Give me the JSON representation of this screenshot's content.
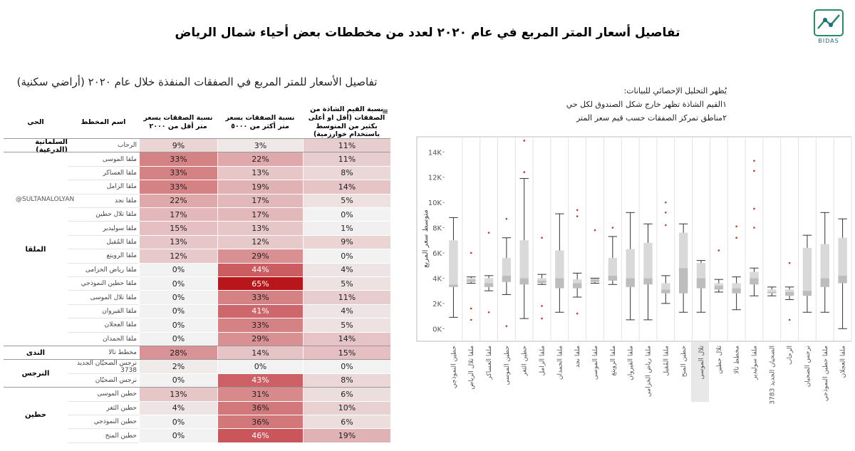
{
  "header": {
    "title": "تفاصيل أسعار المتر المربع  في عام ٢٠٢٠ لعدد من مخططات بعض أحياء شمال الرياض",
    "logo": "BIDAS"
  },
  "table": {
    "title": "تفاصيل الأسعار للمتر المربع في الصفقات المنفذة خلال عام ٢٠٢٠ (أراضي سكنية)",
    "watermark": "@SULTANALOLYAN",
    "columns": [
      "الحي",
      "اسم المخطط",
      "نسبة الصفقات بسعر متر أقل من ٢٠٠٠",
      "نسبة الصفقات بسعر متر أكثر من ٥٠٠٠",
      "نسبة القيم الشاذة من الصفقات (أقل او أعلى بكثير من المتوسط باستخدام خوارزمية)"
    ],
    "groups": [
      {
        "district": "السلمانية (الدرعية)",
        "rows": [
          {
            "plan": "الرحاب",
            "cells": [
              {
                "value": 11,
                "label": "11%"
              },
              {
                "value": 3,
                "label": "3%"
              },
              {
                "value": 9,
                "label": "9%"
              }
            ]
          }
        ]
      },
      {
        "district": "الملقا",
        "rows": [
          {
            "plan": "ملقا الموسى",
            "cells": [
              {
                "value": 11,
                "label": "11%"
              },
              {
                "value": 22,
                "label": "22%"
              },
              {
                "value": 33,
                "label": "33%"
              }
            ]
          },
          {
            "plan": "ملقا العساكر",
            "cells": [
              {
                "value": 8,
                "label": "8%"
              },
              {
                "value": 13,
                "label": "13%"
              },
              {
                "value": 33,
                "label": "33%"
              }
            ]
          },
          {
            "plan": "ملقا الزامل",
            "cells": [
              {
                "value": 14,
                "label": "14%"
              },
              {
                "value": 19,
                "label": "19%"
              },
              {
                "value": 33,
                "label": "33%"
              }
            ]
          },
          {
            "plan": "ملقا نجد",
            "cells": [
              {
                "value": 5,
                "label": "5%"
              },
              {
                "value": 17,
                "label": "17%"
              },
              {
                "value": 22,
                "label": "22%"
              }
            ]
          },
          {
            "plan": "ملقا تلال حطين",
            "cells": [
              {
                "value": 0,
                "label": "0%"
              },
              {
                "value": 17,
                "label": "17%"
              },
              {
                "value": 17,
                "label": "17%"
              }
            ]
          },
          {
            "plan": "ملقا سوليدير",
            "cells": [
              {
                "value": 1,
                "label": "1%"
              },
              {
                "value": 13,
                "label": "13%"
              },
              {
                "value": 15,
                "label": "15%"
              }
            ]
          },
          {
            "plan": "ملقا المُقيل",
            "cells": [
              {
                "value": 9,
                "label": "9%"
              },
              {
                "value": 12,
                "label": "12%"
              },
              {
                "value": 13,
                "label": "13%"
              }
            ]
          },
          {
            "plan": "ملقا الرويتع",
            "cells": [
              {
                "value": 0,
                "label": "0%"
              },
              {
                "value": 29,
                "label": "29%"
              },
              {
                "value": 12,
                "label": "12%"
              }
            ]
          },
          {
            "plan": "ملقا رياض الخزامى",
            "cells": [
              {
                "value": 4,
                "label": "4%"
              },
              {
                "value": 44,
                "label": "44%"
              },
              {
                "value": 0,
                "label": "0%"
              }
            ]
          },
          {
            "plan": "ملقا حطين النموذجي",
            "cells": [
              {
                "value": 5,
                "label": "5%"
              },
              {
                "value": 65,
                "label": "65%"
              },
              {
                "value": 0,
                "label": "0%"
              }
            ]
          },
          {
            "plan": "ملقا تلال الموسى",
            "cells": [
              {
                "value": 11,
                "label": "11%"
              },
              {
                "value": 33,
                "label": "33%"
              },
              {
                "value": 0,
                "label": "0%"
              }
            ]
          },
          {
            "plan": "ملقا القيروان",
            "cells": [
              {
                "value": 4,
                "label": "4%"
              },
              {
                "value": 41,
                "label": "41%"
              },
              {
                "value": 0,
                "label": "0%"
              }
            ]
          },
          {
            "plan": "ملقا العجلان",
            "cells": [
              {
                "value": 5,
                "label": "5%"
              },
              {
                "value": 33,
                "label": "33%"
              },
              {
                "value": 0,
                "label": "0%"
              }
            ]
          },
          {
            "plan": "ملقا الحمدان",
            "cells": [
              {
                "value": 14,
                "label": "14%"
              },
              {
                "value": 29,
                "label": "29%"
              },
              {
                "value": 0,
                "label": "0%"
              }
            ]
          }
        ]
      },
      {
        "district": "الندى",
        "rows": [
          {
            "plan": "مخطط تالا",
            "cells": [
              {
                "value": 15,
                "label": "15%"
              },
              {
                "value": 14,
                "label": "14%"
              },
              {
                "value": 28,
                "label": "28%"
              }
            ]
          }
        ]
      },
      {
        "district": "النرجس",
        "rows": [
          {
            "plan": "نرجس الضحيّان الجديد 3738",
            "cells": [
              {
                "value": 0,
                "label": "0%"
              },
              {
                "value": 0,
                "label": "0%"
              },
              {
                "value": 2,
                "label": "2%"
              }
            ]
          },
          {
            "plan": "نرجس الضحيّان",
            "cells": [
              {
                "value": 8,
                "label": "8%"
              },
              {
                "value": 43,
                "label": "43%"
              },
              {
                "value": 0,
                "label": "0%"
              }
            ]
          }
        ]
      },
      {
        "district": "حطين",
        "rows": [
          {
            "plan": "حطين الموسى",
            "cells": [
              {
                "value": 6,
                "label": "6%"
              },
              {
                "value": 31,
                "label": "31%"
              },
              {
                "value": 13,
                "label": "13%"
              }
            ]
          },
          {
            "plan": "حطين الثغر",
            "cells": [
              {
                "value": 10,
                "label": "10%"
              },
              {
                "value": 36,
                "label": "36%"
              },
              {
                "value": 4,
                "label": "4%"
              }
            ]
          },
          {
            "plan": "حطين النموذجي",
            "cells": [
              {
                "value": 6,
                "label": "6%"
              },
              {
                "value": 36,
                "label": "36%"
              },
              {
                "value": 0,
                "label": "0%"
              }
            ]
          },
          {
            "plan": "حطين المنح",
            "cells": [
              {
                "value": 19,
                "label": "19%"
              },
              {
                "value": 46,
                "label": "46%"
              },
              {
                "value": 0,
                "label": "0%"
              }
            ]
          }
        ]
      }
    ]
  },
  "chart_data": {
    "type": "box",
    "notes": [
      "يُظهر التحليل الإحصائي للبيانات:",
      "١القيم الشاذة تظهر خارج شكل الصندوق لكل حي",
      "٢مناطق تمركز الصفقات حسب قيم سعر المتر"
    ],
    "y_label": "متوسط سعر المربع",
    "categories": [
      "حطين النموذجي",
      "ملقا تلال الرياض",
      "ملقا العساكر",
      "حطين الموسى",
      "حطين الثغر",
      "ملقا الزامل",
      "ملقا الحمدان",
      "ملقا نجد",
      "ملقا الموسى",
      "ملقا الرويتع",
      "ملقا القيروان",
      "ملقا رياض الخزامى",
      "ملقا المُقيل",
      "حطين المنح",
      "تلال الموسى",
      "تلال حطين",
      "مخطط تالا",
      "ملقا سوليدير",
      "الضحيان الجديد 3783",
      "الرحاب",
      "نرجس الضحيان",
      "ملقا حطين النموذجي",
      "ملقا العجلان"
    ],
    "min": [
      900,
      3600,
      3000,
      2700,
      800,
      3500,
      1300,
      2500,
      3600,
      3500,
      700,
      700,
      2000,
      1300,
      1300,
      2900,
      1500,
      2600,
      2600,
      2300,
      1300,
      1300,
      0
    ],
    "q1": [
      3300,
      3700,
      3300,
      3700,
      3500,
      3600,
      3200,
      3200,
      3700,
      3800,
      3300,
      3500,
      2800,
      2800,
      3200,
      3100,
      2800,
      3500,
      2800,
      2600,
      2600,
      3300,
      3600
    ],
    "median": [
      3500,
      3900,
      3600,
      4200,
      4000,
      3800,
      4000,
      3600,
      3900,
      4200,
      4000,
      4000,
      3100,
      4800,
      4000,
      3400,
      3200,
      4000,
      2900,
      2900,
      3000,
      4000,
      4200
    ],
    "q3": [
      7000,
      4000,
      4000,
      5600,
      7000,
      4000,
      6200,
      3900,
      4000,
      5600,
      6300,
      6800,
      3600,
      7600,
      5200,
      3600,
      3600,
      4500,
      3100,
      3100,
      6400,
      6700,
      7200
    ],
    "max": [
      8800,
      4100,
      4200,
      7200,
      11900,
      4300,
      9100,
      4400,
      4000,
      7300,
      9200,
      8300,
      4200,
      8300,
      5400,
      3900,
      4100,
      4800,
      3300,
      3300,
      7400,
      9200,
      8700
    ],
    "outliers": [
      [],
      [
        6000,
        1600,
        700
      ],
      [
        7600,
        1300
      ],
      [
        8700,
        200
      ],
      [
        14900,
        12400
      ],
      [
        7200,
        1800,
        800
      ],
      [],
      [
        9400,
        8900,
        1200
      ],
      [
        7800
      ],
      [
        8000
      ],
      [],
      [],
      [
        10000,
        9200,
        8200
      ],
      [],
      [],
      [
        6200
      ],
      [
        8100,
        7200
      ],
      [
        13300,
        12500,
        9500,
        8000
      ],
      [],
      [
        5200,
        700
      ],
      [],
      [],
      []
    ],
    "color": "#d9d9d9",
    "ylim": [
      -1000,
      15200
    ],
    "yticks": [
      {
        "value": 0,
        "label": "0K"
      },
      {
        "value": 2000,
        "label": "2K"
      },
      {
        "value": 4000,
        "label": "4K"
      },
      {
        "value": 6000,
        "label": "6K"
      },
      {
        "value": 8000,
        "label": "8K"
      },
      {
        "value": 10000,
        "label": "10K"
      },
      {
        "value": 12000,
        "label": "12K"
      },
      {
        "value": 14000,
        "label": "14K"
      }
    ]
  }
}
